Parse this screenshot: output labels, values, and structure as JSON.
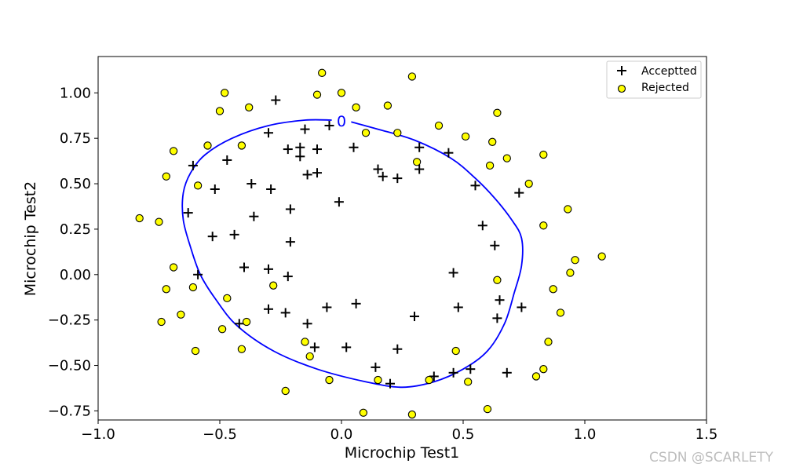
{
  "chart_data": {
    "type": "scatter",
    "xlabel": "Microchip Test1",
    "ylabel": "Microchip Test2",
    "xlim": [
      -1.0,
      1.5
    ],
    "ylim": [
      -0.8,
      1.2
    ],
    "xticks": [
      "−1.0",
      "−0.5",
      "0.0",
      "0.5",
      "1.0",
      "1.5"
    ],
    "xtick_values": [
      -1.0,
      -0.5,
      0.0,
      0.5,
      1.0,
      1.5
    ],
    "yticks": [
      "−0.75",
      "−0.50",
      "−0.25",
      "0.00",
      "0.25",
      "0.50",
      "0.75",
      "1.00"
    ],
    "ytick_values": [
      -0.75,
      -0.5,
      -0.25,
      0.0,
      0.25,
      0.5,
      0.75,
      1.0
    ],
    "grid": false,
    "legend_position": "top-right",
    "series": [
      {
        "name": "Acceptted",
        "marker": "plus",
        "color": "#000000",
        "points": [
          [
            -0.27,
            0.96
          ],
          [
            -0.3,
            0.78
          ],
          [
            -0.15,
            0.8
          ],
          [
            -0.05,
            0.82
          ],
          [
            -0.22,
            0.69
          ],
          [
            -0.17,
            0.7
          ],
          [
            -0.1,
            0.69
          ],
          [
            0.05,
            0.7
          ],
          [
            -0.17,
            0.65
          ],
          [
            -0.61,
            0.6
          ],
          [
            -0.47,
            0.63
          ],
          [
            -0.14,
            0.55
          ],
          [
            -0.1,
            0.56
          ],
          [
            0.15,
            0.58
          ],
          [
            0.17,
            0.54
          ],
          [
            0.23,
            0.53
          ],
          [
            0.32,
            0.58
          ],
          [
            0.32,
            0.7
          ],
          [
            0.44,
            0.67
          ],
          [
            -0.52,
            0.47
          ],
          [
            -0.37,
            0.5
          ],
          [
            -0.29,
            0.47
          ],
          [
            0.55,
            0.49
          ],
          [
            0.73,
            0.45
          ],
          [
            -0.63,
            0.34
          ],
          [
            -0.21,
            0.36
          ],
          [
            -0.01,
            0.4
          ],
          [
            -0.36,
            0.32
          ],
          [
            0.58,
            0.27
          ],
          [
            -0.53,
            0.21
          ],
          [
            -0.44,
            0.22
          ],
          [
            -0.21,
            0.18
          ],
          [
            0.63,
            0.16
          ],
          [
            -0.59,
            0.0
          ],
          [
            -0.4,
            0.04
          ],
          [
            -0.3,
            0.03
          ],
          [
            -0.22,
            -0.01
          ],
          [
            0.46,
            0.01
          ],
          [
            0.65,
            -0.14
          ],
          [
            -0.3,
            -0.19
          ],
          [
            -0.23,
            -0.21
          ],
          [
            -0.06,
            -0.18
          ],
          [
            0.06,
            -0.16
          ],
          [
            0.48,
            -0.18
          ],
          [
            0.74,
            -0.18
          ],
          [
            -0.42,
            -0.27
          ],
          [
            -0.14,
            -0.27
          ],
          [
            0.3,
            -0.23
          ],
          [
            0.64,
            -0.24
          ],
          [
            -0.11,
            -0.4
          ],
          [
            0.02,
            -0.4
          ],
          [
            0.23,
            -0.41
          ],
          [
            0.14,
            -0.51
          ],
          [
            0.46,
            -0.54
          ],
          [
            0.53,
            -0.52
          ],
          [
            0.68,
            -0.54
          ],
          [
            0.2,
            -0.6
          ],
          [
            0.38,
            -0.56
          ]
        ]
      },
      {
        "name": "Rejected",
        "marker": "circle",
        "color": "#ffff00",
        "edgecolor": "#000000",
        "points": [
          [
            -0.08,
            1.11
          ],
          [
            0.29,
            1.09
          ],
          [
            -0.48,
            1.0
          ],
          [
            -0.1,
            0.99
          ],
          [
            0.0,
            1.0
          ],
          [
            -0.5,
            0.9
          ],
          [
            -0.38,
            0.92
          ],
          [
            0.06,
            0.92
          ],
          [
            0.19,
            0.93
          ],
          [
            0.64,
            0.89
          ],
          [
            0.4,
            0.82
          ],
          [
            0.51,
            0.76
          ],
          [
            0.1,
            0.78
          ],
          [
            0.23,
            0.78
          ],
          [
            0.62,
            0.73
          ],
          [
            -0.55,
            0.71
          ],
          [
            -0.41,
            0.71
          ],
          [
            -0.69,
            0.68
          ],
          [
            0.68,
            0.64
          ],
          [
            0.83,
            0.66
          ],
          [
            0.31,
            0.62
          ],
          [
            0.61,
            0.6
          ],
          [
            -0.72,
            0.54
          ],
          [
            -0.59,
            0.49
          ],
          [
            0.77,
            0.5
          ],
          [
            0.93,
            0.36
          ],
          [
            -0.83,
            0.31
          ],
          [
            -0.75,
            0.29
          ],
          [
            0.83,
            0.27
          ],
          [
            0.96,
            0.08
          ],
          [
            1.07,
            0.1
          ],
          [
            -0.69,
            0.04
          ],
          [
            0.94,
            0.01
          ],
          [
            0.64,
            -0.03
          ],
          [
            -0.61,
            -0.07
          ],
          [
            -0.72,
            -0.08
          ],
          [
            -0.28,
            -0.06
          ],
          [
            0.87,
            -0.08
          ],
          [
            -0.47,
            -0.13
          ],
          [
            -0.66,
            -0.22
          ],
          [
            0.9,
            -0.21
          ],
          [
            -0.74,
            -0.26
          ],
          [
            -0.39,
            -0.26
          ],
          [
            -0.49,
            -0.3
          ],
          [
            0.85,
            -0.37
          ],
          [
            -0.15,
            -0.37
          ],
          [
            -0.6,
            -0.42
          ],
          [
            -0.41,
            -0.41
          ],
          [
            0.47,
            -0.42
          ],
          [
            -0.13,
            -0.45
          ],
          [
            0.83,
            -0.52
          ],
          [
            0.8,
            -0.56
          ],
          [
            -0.05,
            -0.58
          ],
          [
            0.15,
            -0.58
          ],
          [
            0.36,
            -0.58
          ],
          [
            0.52,
            -0.59
          ],
          [
            -0.23,
            -0.64
          ],
          [
            0.6,
            -0.74
          ],
          [
            0.09,
            -0.76
          ],
          [
            0.29,
            -0.77
          ]
        ]
      }
    ],
    "decision_boundary": {
      "level_label": "0",
      "color": "#0000ff",
      "points": [
        [
          -0.04,
          0.85
        ],
        [
          -0.15,
          0.85
        ],
        [
          -0.3,
          0.82
        ],
        [
          -0.45,
          0.75
        ],
        [
          -0.56,
          0.66
        ],
        [
          -0.62,
          0.56
        ],
        [
          -0.65,
          0.45
        ],
        [
          -0.65,
          0.3
        ],
        [
          -0.62,
          0.15
        ],
        [
          -0.58,
          0.0
        ],
        [
          -0.52,
          -0.13
        ],
        [
          -0.43,
          -0.28
        ],
        [
          -0.28,
          -0.42
        ],
        [
          -0.1,
          -0.52
        ],
        [
          0.1,
          -0.59
        ],
        [
          0.25,
          -0.62
        ],
        [
          0.38,
          -0.59
        ],
        [
          0.5,
          -0.52
        ],
        [
          0.6,
          -0.42
        ],
        [
          0.67,
          -0.27
        ],
        [
          0.71,
          -0.1
        ],
        [
          0.74,
          0.05
        ],
        [
          0.74,
          0.2
        ],
        [
          0.7,
          0.3
        ],
        [
          0.63,
          0.42
        ],
        [
          0.55,
          0.53
        ],
        [
          0.45,
          0.64
        ],
        [
          0.3,
          0.74
        ],
        [
          0.15,
          0.8
        ],
        [
          0.04,
          0.84
        ]
      ]
    }
  },
  "watermark": "CSDN @SCARLETY"
}
